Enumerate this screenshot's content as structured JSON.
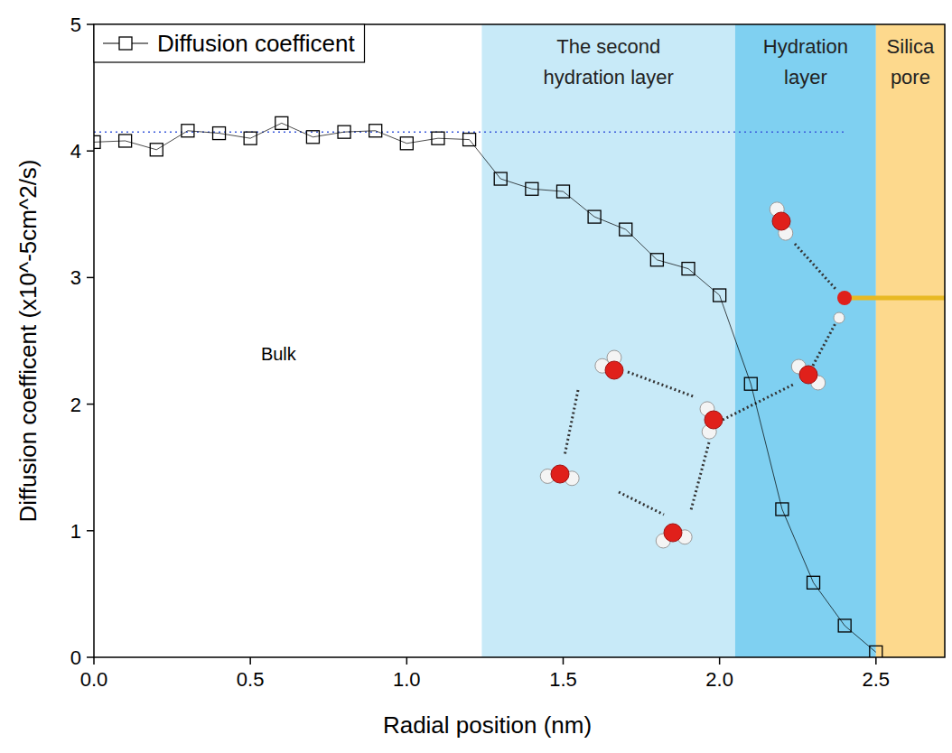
{
  "chart_data": {
    "type": "line",
    "x_label": "Radial position (nm)",
    "y_label": "Diffusion coefficent (x10^-5cm^2/s)",
    "xlim": [
      0,
      2.72
    ],
    "ylim": [
      0,
      5
    ],
    "xticks": [
      {
        "value": 0,
        "label": "0.0"
      },
      {
        "value": 0.5,
        "label": "0.5"
      },
      {
        "value": 1,
        "label": "1.0"
      },
      {
        "value": 1.5,
        "label": "1.5"
      },
      {
        "value": 2,
        "label": "2.0"
      },
      {
        "value": 2.5,
        "label": "2.5"
      }
    ],
    "yticks": [
      0,
      1,
      2,
      3,
      4,
      5
    ],
    "x": [
      0,
      0.1,
      0.2,
      0.3,
      0.4,
      0.5,
      0.6,
      0.7,
      0.8,
      0.9,
      1.0,
      1.1,
      1.2,
      1.3,
      1.4,
      1.5,
      1.6,
      1.7,
      1.8,
      1.9,
      2.0,
      2.1,
      2.2,
      2.3,
      2.4,
      2.5
    ],
    "series": [
      {
        "name": "Diffusion coefficent",
        "color": "#000000",
        "marker": "square",
        "line_style": "solid",
        "values": [
          4.07,
          4.08,
          4.01,
          4.16,
          4.14,
          4.1,
          4.22,
          4.11,
          4.15,
          4.16,
          4.06,
          4.1,
          4.09,
          3.78,
          3.7,
          3.68,
          3.48,
          3.38,
          3.14,
          3.07,
          2.86,
          2.16,
          1.17,
          0.59,
          0.25,
          0.04
        ]
      }
    ],
    "legend": "upper left",
    "regions": [
      {
        "label": [
          "The second",
          "hydration layer"
        ],
        "xlim": [
          1.24,
          2.05
        ],
        "color": "#c8eaf8"
      },
      {
        "label": [
          "Hydration",
          "layer"
        ],
        "xlim": [
          2.05,
          2.5
        ],
        "color": "#7fd0f1"
      },
      {
        "label": [
          "Silica",
          "pore"
        ],
        "xlim": [
          2.5,
          2.72
        ],
        "color": "#fdd98d"
      }
    ],
    "reference_line": {
      "value": 4.15,
      "xlim": [
        0,
        2.4
      ],
      "color": "#3b5bdb",
      "line_style": "dotted"
    },
    "annotations": [
      {
        "text": "Bulk",
        "x": 0.59,
        "y": 2.35
      }
    ]
  }
}
